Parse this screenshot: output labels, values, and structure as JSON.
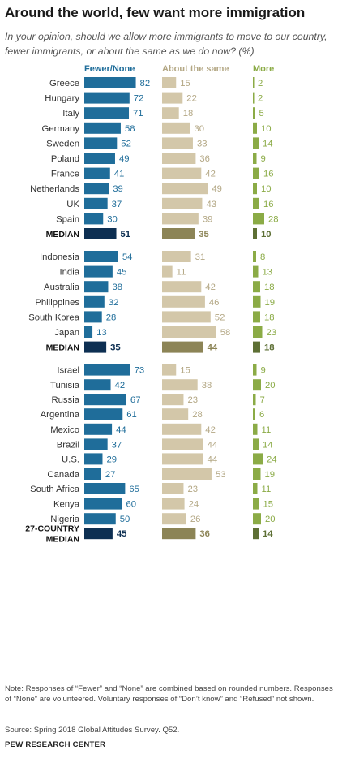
{
  "header": {
    "title": "Around the world, few want more immigration",
    "subtitle": "In your opinion, should we allow more immigrants to move to our country, fewer immigrants, or about the same as we do now? (%)"
  },
  "colors": {
    "fewer": "#1f6d9a",
    "fewer_median": "#0d2f52",
    "same": "#d3c7a9",
    "same_text": "#b3a784",
    "same_median": "#8c8456",
    "more": "#8bab46",
    "more_median": "#5d6f34"
  },
  "chart_data": {
    "type": "bar",
    "series": [
      {
        "name": "Fewer/None"
      },
      {
        "name": "About the same"
      },
      {
        "name": "More"
      }
    ],
    "groups": [
      {
        "rows": [
          {
            "label": "Greece",
            "fewer": 82,
            "same": 15,
            "more": 2
          },
          {
            "label": "Hungary",
            "fewer": 72,
            "same": 22,
            "more": 2
          },
          {
            "label": "Italy",
            "fewer": 71,
            "same": 18,
            "more": 5
          },
          {
            "label": "Germany",
            "fewer": 58,
            "same": 30,
            "more": 10
          },
          {
            "label": "Sweden",
            "fewer": 52,
            "same": 33,
            "more": 14
          },
          {
            "label": "Poland",
            "fewer": 49,
            "same": 36,
            "more": 9
          },
          {
            "label": "France",
            "fewer": 41,
            "same": 42,
            "more": 16
          },
          {
            "label": "Netherlands",
            "fewer": 39,
            "same": 49,
            "more": 10
          },
          {
            "label": "UK",
            "fewer": 37,
            "same": 43,
            "more": 16
          },
          {
            "label": "Spain",
            "fewer": 30,
            "same": 39,
            "more": 28
          },
          {
            "label": "MEDIAN",
            "fewer": 51,
            "same": 35,
            "more": 10,
            "median": true
          }
        ]
      },
      {
        "rows": [
          {
            "label": "Indonesia",
            "fewer": 54,
            "same": 31,
            "more": 8
          },
          {
            "label": "India",
            "fewer": 45,
            "same": 11,
            "more": 13
          },
          {
            "label": "Australia",
            "fewer": 38,
            "same": 42,
            "more": 18
          },
          {
            "label": "Philippines",
            "fewer": 32,
            "same": 46,
            "more": 19
          },
          {
            "label": "South Korea",
            "fewer": 28,
            "same": 52,
            "more": 18
          },
          {
            "label": "Japan",
            "fewer": 13,
            "same": 58,
            "more": 23
          },
          {
            "label": "MEDIAN",
            "fewer": 35,
            "same": 44,
            "more": 18,
            "median": true
          }
        ]
      },
      {
        "rows": [
          {
            "label": "Israel",
            "fewer": 73,
            "same": 15,
            "more": 9
          },
          {
            "label": "Tunisia",
            "fewer": 42,
            "same": 38,
            "more": 20
          }
        ]
      },
      {
        "rows": [
          {
            "label": "Russia",
            "fewer": 67,
            "same": 23,
            "more": 7
          }
        ]
      },
      {
        "rows": [
          {
            "label": "Argentina",
            "fewer": 61,
            "same": 28,
            "more": 6
          },
          {
            "label": "Mexico",
            "fewer": 44,
            "same": 42,
            "more": 11
          },
          {
            "label": "Brazil",
            "fewer": 37,
            "same": 44,
            "more": 14
          }
        ]
      },
      {
        "rows": [
          {
            "label": "U.S.",
            "fewer": 29,
            "same": 44,
            "more": 24
          },
          {
            "label": "Canada",
            "fewer": 27,
            "same": 53,
            "more": 19
          }
        ]
      },
      {
        "rows": [
          {
            "label": "South Africa",
            "fewer": 65,
            "same": 23,
            "more": 11
          },
          {
            "label": "Kenya",
            "fewer": 60,
            "same": 24,
            "more": 15
          },
          {
            "label": "Nigeria",
            "fewer": 50,
            "same": 26,
            "more": 20
          }
        ]
      },
      {
        "rows": [
          {
            "label": "27-COUNTRY MEDIAN",
            "label_lines": [
              "27-COUNTRY",
              "MEDIAN"
            ],
            "fewer": 45,
            "same": 36,
            "more": 14,
            "median": true
          }
        ]
      }
    ]
  },
  "footer": {
    "notes": "Note: Responses of “Fewer” and “None” are combined based on rounded numbers. Responses of “None” are volunteered. Voluntary responses of “Don’t know” and “Refused” not shown.",
    "source": "Source: Spring 2018 Global Attitudes Survey. Q52.",
    "organization": "PEW RESEARCH CENTER"
  }
}
